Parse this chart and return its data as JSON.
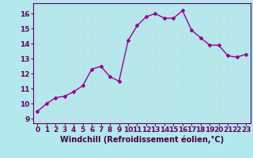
{
  "x": [
    0,
    1,
    2,
    3,
    4,
    5,
    6,
    7,
    8,
    9,
    10,
    11,
    12,
    13,
    14,
    15,
    16,
    17,
    18,
    19,
    20,
    21,
    22,
    23
  ],
  "y": [
    9.5,
    10.0,
    10.4,
    10.5,
    10.8,
    11.2,
    12.3,
    12.5,
    11.8,
    11.5,
    14.2,
    15.2,
    15.8,
    16.0,
    15.7,
    15.7,
    16.2,
    14.9,
    14.4,
    13.9,
    13.9,
    13.2,
    13.1,
    13.3
  ],
  "line_color": "#990099",
  "marker": "D",
  "marker_size": 2,
  "bg_color": "#b3e8ec",
  "grid_color": "#d0d8e0",
  "xlabel": "Windchill (Refroidissement éolien,°C)",
  "xlim": [
    -0.5,
    23.5
  ],
  "ylim": [
    8.7,
    16.7
  ],
  "yticks": [
    9,
    10,
    11,
    12,
    13,
    14,
    15,
    16
  ],
  "xticks": [
    0,
    1,
    2,
    3,
    4,
    5,
    6,
    7,
    8,
    9,
    10,
    11,
    12,
    13,
    14,
    15,
    16,
    17,
    18,
    19,
    20,
    21,
    22,
    23
  ],
  "xlabel_fontsize": 7,
  "tick_fontsize": 6.5,
  "line_width": 1.0
}
